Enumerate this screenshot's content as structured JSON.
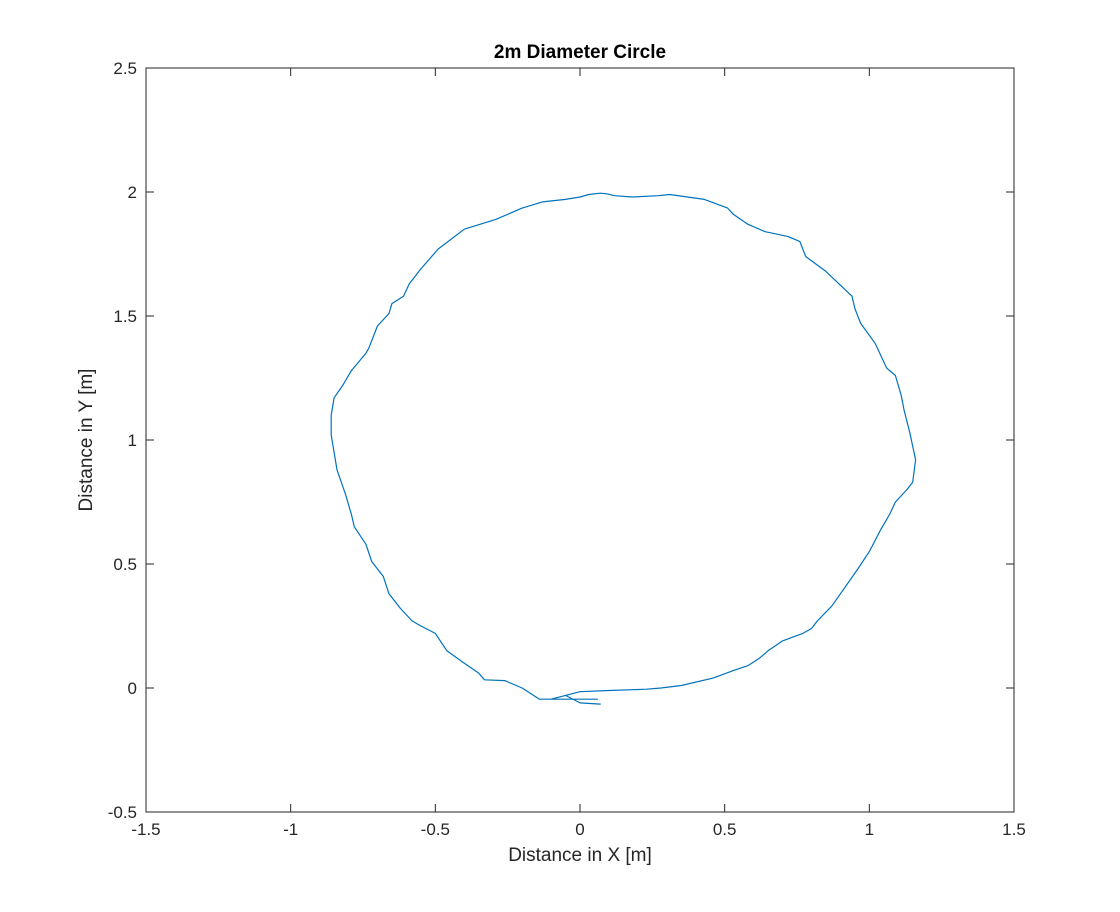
{
  "chart_data": {
    "type": "line",
    "title": "2m Diameter Circle",
    "xlabel": "Distance in X [m]",
    "ylabel": "Distance in Y [m]",
    "xlim": [
      -1.5,
      1.5
    ],
    "ylim": [
      -0.5,
      2.5
    ],
    "xticks": [
      -1.5,
      -1,
      -0.5,
      0,
      0.5,
      1,
      1.5
    ],
    "yticks": [
      -0.5,
      0,
      0.5,
      1,
      1.5,
      2,
      2.5
    ],
    "xtick_labels": [
      "-1.5",
      "-1",
      "-0.5",
      "0",
      "0.5",
      "1",
      "1.5"
    ],
    "ytick_labels": [
      "-0.5",
      "0",
      "0.5",
      "1",
      "1.5",
      "2",
      "2.5"
    ],
    "grid": false,
    "box": true,
    "series": [
      {
        "color": "#0072bd",
        "x": [
          0.07,
          0.0,
          -0.05,
          -0.1,
          -0.14,
          -0.2,
          -0.26,
          -0.33,
          -0.35,
          -0.4,
          -0.46,
          -0.5,
          -0.55,
          -0.58,
          -0.62,
          -0.66,
          -0.68,
          -0.72,
          -0.74,
          -0.78,
          -0.79,
          -0.81,
          -0.84,
          -0.85,
          -0.86,
          -0.86,
          -0.85,
          -0.82,
          -0.79,
          -0.74,
          -0.73,
          -0.7,
          -0.66,
          -0.65,
          -0.61,
          -0.59,
          -0.55,
          -0.49,
          -0.4,
          -0.29,
          -0.2,
          -0.13,
          -0.05,
          0.0,
          0.03,
          0.07,
          0.09,
          0.12,
          0.18,
          0.27,
          0.31,
          0.43,
          0.51,
          0.53,
          0.58,
          0.64,
          0.72,
          0.76,
          0.78,
          0.85,
          0.94,
          0.95,
          0.97,
          1.02,
          1.06,
          1.09,
          1.11,
          1.12,
          1.14,
          1.16,
          1.15,
          1.13,
          1.09,
          1.07,
          1.04,
          1.0,
          0.96,
          0.9,
          0.87,
          0.82,
          0.8,
          0.77,
          0.7,
          0.65,
          0.62,
          0.58,
          0.53,
          0.46,
          0.35,
          0.28,
          0.23,
          0.1,
          0.0,
          -0.1,
          0.06
        ],
        "y": [
          -0.065,
          -0.06,
          -0.03,
          -0.045,
          -0.045,
          0.0,
          0.03,
          0.033,
          0.06,
          0.1,
          0.15,
          0.22,
          0.25,
          0.27,
          0.32,
          0.38,
          0.45,
          0.51,
          0.58,
          0.65,
          0.7,
          0.78,
          0.88,
          0.95,
          1.02,
          1.1,
          1.17,
          1.22,
          1.28,
          1.35,
          1.37,
          1.46,
          1.51,
          1.55,
          1.58,
          1.63,
          1.69,
          1.77,
          1.85,
          1.89,
          1.935,
          1.96,
          1.97,
          1.98,
          1.99,
          1.995,
          1.993,
          1.985,
          1.98,
          1.985,
          1.99,
          1.97,
          1.935,
          1.91,
          1.87,
          1.84,
          1.82,
          1.8,
          1.74,
          1.68,
          1.58,
          1.53,
          1.47,
          1.39,
          1.29,
          1.26,
          1.18,
          1.12,
          1.03,
          0.92,
          0.83,
          0.8,
          0.75,
          0.7,
          0.64,
          0.55,
          0.48,
          0.38,
          0.33,
          0.27,
          0.24,
          0.22,
          0.19,
          0.15,
          0.12,
          0.09,
          0.07,
          0.04,
          0.01,
          0.0,
          -0.005,
          -0.01,
          -0.015,
          -0.045,
          -0.045
        ]
      }
    ]
  }
}
